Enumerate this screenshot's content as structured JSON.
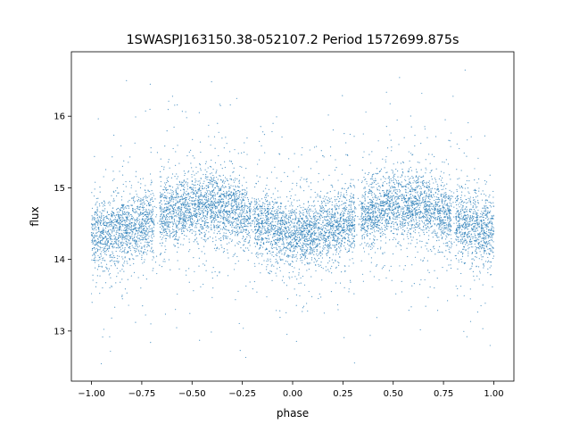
{
  "chart_data": {
    "type": "scatter",
    "title": "1SWASPJ163150.38-052107.2 Period 1572699.875s",
    "xlabel": "phase",
    "ylabel": "flux",
    "xlim": [
      -1.1,
      1.1
    ],
    "ylim": [
      12.3,
      16.9
    ],
    "xticks": [
      {
        "value": -1.0,
        "label": "−1.00"
      },
      {
        "value": -0.75,
        "label": "−0.75"
      },
      {
        "value": -0.5,
        "label": "−0.50"
      },
      {
        "value": -0.25,
        "label": "−0.25"
      },
      {
        "value": 0.0,
        "label": "0.00"
      },
      {
        "value": 0.25,
        "label": "0.25"
      },
      {
        "value": 0.5,
        "label": "0.50"
      },
      {
        "value": 0.75,
        "label": "0.75"
      },
      {
        "value": 1.0,
        "label": "1.00"
      }
    ],
    "yticks": [
      {
        "value": 13,
        "label": "13"
      },
      {
        "value": 14,
        "label": "14"
      },
      {
        "value": 15,
        "label": "15"
      },
      {
        "value": 16,
        "label": "16"
      }
    ],
    "grid": false,
    "legend": "none",
    "series": [
      {
        "color": "#1f77b4",
        "marker_size": 0.6,
        "phase_range": [
          -1.0,
          1.0
        ],
        "flux_range": [
          12.5,
          16.7
        ],
        "profile": [
          {
            "phase": 0.0,
            "flux": 14.35
          },
          {
            "phase": 0.1,
            "flux": 14.35
          },
          {
            "phase": 0.2,
            "flux": 14.45
          },
          {
            "phase": 0.3,
            "flux": 14.55
          },
          {
            "phase": 0.4,
            "flux": 14.65
          },
          {
            "phase": 0.5,
            "flux": 14.75
          },
          {
            "phase": 0.6,
            "flux": 14.75
          },
          {
            "phase": 0.7,
            "flux": 14.7
          },
          {
            "phase": 0.8,
            "flux": 14.55
          },
          {
            "phase": 0.9,
            "flux": 14.45
          },
          {
            "phase": 1.0,
            "flux": 14.35
          }
        ]
      }
    ]
  }
}
